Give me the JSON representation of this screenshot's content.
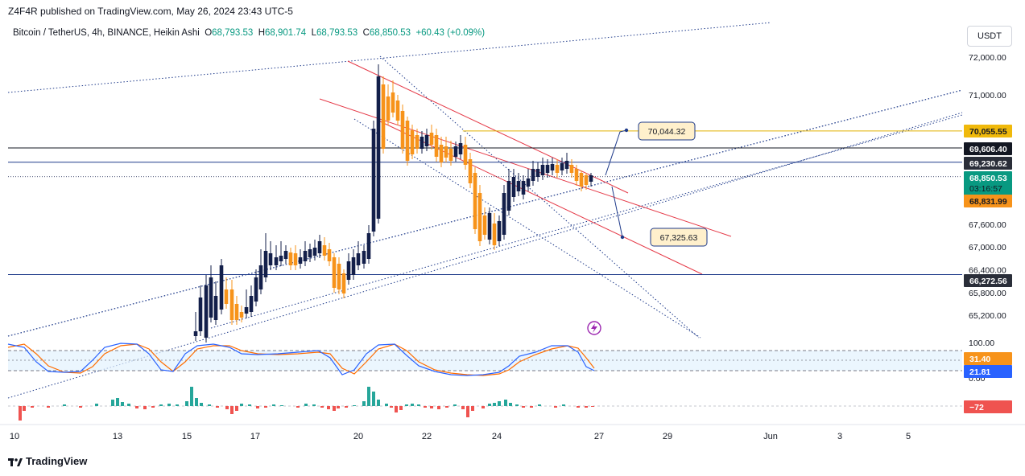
{
  "header": {
    "published": "Z4F4R published on TradingView.com, May 26, 2024 23:43 UTC-5",
    "symbol": "Bitcoin / TetherUS, 4h, BINANCE, Heikin Ashi",
    "o_label": "O",
    "o_value": "68,793.53",
    "h_label": "H",
    "h_value": "68,901.74",
    "l_label": "L",
    "l_value": "68,793.53",
    "c_label": "C",
    "c_value": "68,850.53",
    "change": "+60.43 (+0.09%)",
    "currency": "USDT"
  },
  "footer": {
    "brand": "TradingView"
  },
  "colors": {
    "up": "#131f4a",
    "down": "#f7931a",
    "red_line": "#e53947",
    "blue_line": "#1e3a8a",
    "gold": "#e0b000",
    "stoch_k": "#2962ff",
    "stoch_d": "#ff6d00",
    "macd_pos": "#26a69a",
    "macd_neg": "#ef5350"
  },
  "chart_data": {
    "type": "candlestick",
    "title": "Bitcoin / TetherUS, 4h, BINANCE, Heikin Ashi",
    "y_ticks": [
      "72,000.00",
      "71,000.00",
      "67,600.00",
      "67,000.00",
      "66,400.00",
      "65,800.00",
      "65,200.00"
    ],
    "y_tick_values": [
      72000,
      71000,
      67600,
      67000,
      66400,
      65800,
      65200
    ],
    "x_ticks": [
      "10",
      "13",
      "15",
      "17",
      "20",
      "22",
      "24",
      "27",
      "29",
      "Jun",
      "3",
      "5"
    ],
    "x_tick_days": [
      10,
      13,
      15,
      17,
      20,
      22,
      24,
      27,
      29,
      32,
      34,
      36
    ],
    "ylim": [
      64900,
      72700
    ],
    "price_tags": [
      {
        "label": "70,055.55",
        "value": 70055.55,
        "style": "gold"
      },
      {
        "label": "69,606.40",
        "value": 69606.4,
        "style": "black"
      },
      {
        "label": "69,230.62",
        "value": 69230.62,
        "style": "navy"
      },
      {
        "label": "68,850.53",
        "value": 68850.53,
        "style": "green",
        "sub": "03:16:57"
      },
      {
        "label": "68,831.99",
        "value": 68831.99,
        "style": "orange"
      },
      {
        "label": "66,272.56",
        "value": 66272.56,
        "style": "navy"
      }
    ],
    "horizontal_levels": [
      {
        "value": 70055.55,
        "style": "gold",
        "from_day": 23.1
      },
      {
        "value": 69606.4,
        "style": "black",
        "from_day": 0
      },
      {
        "value": 69230.62,
        "style": "navy",
        "from_day": 0
      },
      {
        "value": 66272.56,
        "style": "navy",
        "from_day": 0
      }
    ],
    "callouts": [
      {
        "label": "70,044.32",
        "value": 70044.32
      },
      {
        "label": "67,325.63",
        "value": 67325.63
      }
    ],
    "stoch": {
      "ticks": [
        "100.00",
        "0.00"
      ],
      "k_label": "31.40",
      "d_label": "21.81",
      "k": 31.4,
      "d": 21.81
    },
    "macd": {
      "label": "−72",
      "value": -72
    }
  }
}
